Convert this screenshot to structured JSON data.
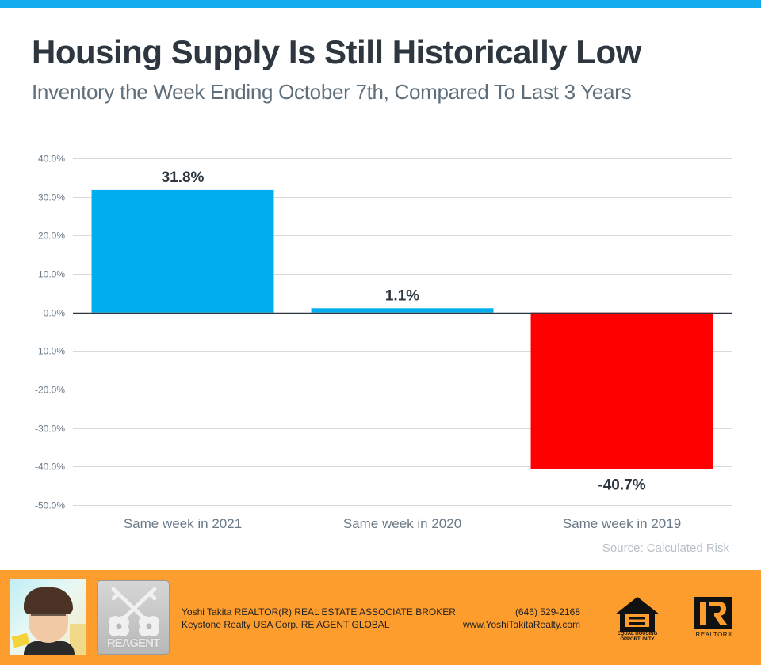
{
  "colors": {
    "top_stripe": "#15acef",
    "positive_bar": "#00adef",
    "negative_bar": "#ff0000",
    "footer_bg": "#fd9d2e",
    "gridline": "#d9d9d9",
    "zero_line": "#2e3740"
  },
  "header": {
    "title": "Housing Supply Is Still Historically Low",
    "subtitle": "Inventory the Week Ending October 7th, Compared To Last 3 Years"
  },
  "chart_data": {
    "type": "bar",
    "title": "Housing Supply Is Still Historically Low",
    "subtitle": "Inventory the Week Ending October 7th, Compared To Last 3 Years",
    "categories": [
      "Same week in 2021",
      "Same week in 2020",
      "Same week in 2019"
    ],
    "values": [
      31.8,
      1.1,
      -40.7
    ],
    "data_labels": [
      "31.8%",
      "1.1%",
      "-40.7%"
    ],
    "bar_colors": [
      "#00adef",
      "#00adef",
      "#ff0000"
    ],
    "xlabel": "",
    "ylabel": "",
    "ylim": [
      -50,
      40
    ],
    "yticks": [
      40,
      30,
      20,
      10,
      0,
      -10,
      -20,
      -30,
      -40,
      -50
    ],
    "ytick_labels": [
      "40.0%",
      "30.0%",
      "20.0%",
      "10.0%",
      "0.0%",
      "-10.0%",
      "-20.0%",
      "-30.0%",
      "-40.0%",
      "-50.0%"
    ],
    "grid": true,
    "legend": "none",
    "source": "Source: Calculated Risk"
  },
  "footer": {
    "agent_line1": "Yoshi Takita REALTOR(R) REAL ESTATE ASSOCIATE BROKER",
    "agent_line2": "Keystone Realty USA Corp.  RE AGENT GLOBAL",
    "phone": "(646) 529-2168",
    "website": "www.YoshiTakitaRealty.com",
    "reagent_logo_text": "REAGENT",
    "eho_text_line1": "EQUAL HOUSING",
    "eho_text_line2": "OPPORTUNITY",
    "realtor_text": "REALTOR®"
  }
}
